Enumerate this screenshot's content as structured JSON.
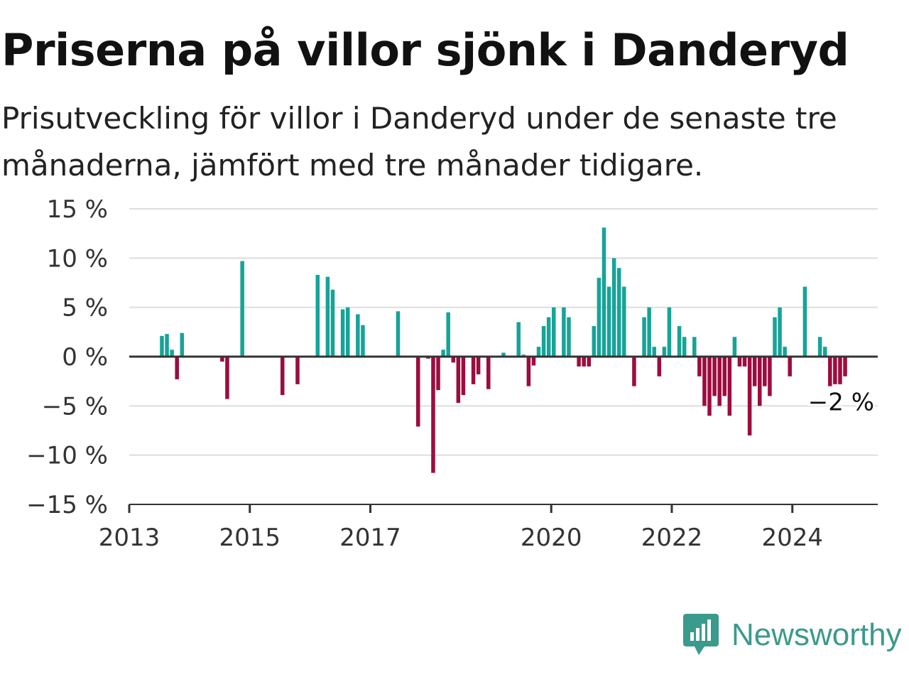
{
  "title": "Priserna på villor sjönk i Danderyd",
  "subtitle": "Prisutveckling för villor i Danderyd under de senaste tre månaderna, jämfört med tre månader tidigare.",
  "brand": {
    "name": "Newsworthy",
    "icon": "newsworthy-logo-icon",
    "color": "#3a9a8c"
  },
  "chart_data": {
    "type": "bar",
    "x_start": "2013-01",
    "x_end": "2025-06",
    "ylim": [
      -15,
      15
    ],
    "yticks": [
      15,
      10,
      5,
      0,
      -5,
      -10,
      -15
    ],
    "ytick_labels": [
      "15 %",
      "10 %",
      "5 %",
      "0 %",
      "−5 %",
      "−10 %",
      "−15 %"
    ],
    "xticks": [
      "2013",
      "2015",
      "2017",
      "2020",
      "2022",
      "2024"
    ],
    "colors": {
      "positive": "#17a398",
      "negative": "#9c0c3f",
      "grid": "#dddddd",
      "axis": "#333333"
    },
    "last_value_label": "−2 %",
    "values": [
      [
        "2013-07",
        2.1
      ],
      [
        "2013-08",
        2.3
      ],
      [
        "2013-09",
        0.7
      ],
      [
        "2013-10",
        -2.3
      ],
      [
        "2013-11",
        2.4
      ],
      [
        "2014-07",
        -0.5
      ],
      [
        "2014-08",
        -4.3
      ],
      [
        "2014-11",
        9.7
      ],
      [
        "2015-07",
        -3.9
      ],
      [
        "2015-10",
        -2.8
      ],
      [
        "2016-02",
        8.3
      ],
      [
        "2016-04",
        8.1
      ],
      [
        "2016-05",
        6.8
      ],
      [
        "2016-07",
        4.8
      ],
      [
        "2016-08",
        5.0
      ],
      [
        "2016-10",
        4.3
      ],
      [
        "2016-11",
        3.2
      ],
      [
        "2017-06",
        4.6
      ],
      [
        "2017-10",
        -7.1
      ],
      [
        "2017-12",
        -0.2
      ],
      [
        "2018-01",
        -11.8
      ],
      [
        "2018-02",
        -3.4
      ],
      [
        "2018-03",
        0.7
      ],
      [
        "2018-04",
        4.5
      ],
      [
        "2018-05",
        -0.6
      ],
      [
        "2018-06",
        -4.7
      ],
      [
        "2018-07",
        -3.9
      ],
      [
        "2018-09",
        -2.8
      ],
      [
        "2018-10",
        -1.8
      ],
      [
        "2018-12",
        -3.3
      ],
      [
        "2019-03",
        0.4
      ],
      [
        "2019-06",
        3.5
      ],
      [
        "2019-07",
        0.2
      ],
      [
        "2019-08",
        -3.0
      ],
      [
        "2019-09",
        -0.9
      ],
      [
        "2019-10",
        1.0
      ],
      [
        "2019-11",
        3.1
      ],
      [
        "2019-12",
        4.0
      ],
      [
        "2020-01",
        5.0
      ],
      [
        "2020-03",
        5.0
      ],
      [
        "2020-04",
        4.0
      ],
      [
        "2020-06",
        -1.0
      ],
      [
        "2020-07",
        -1.0
      ],
      [
        "2020-08",
        -1.0
      ],
      [
        "2020-09",
        3.1
      ],
      [
        "2020-10",
        8.0
      ],
      [
        "2020-11",
        13.1
      ],
      [
        "2020-12",
        7.1
      ],
      [
        "2021-01",
        10.0
      ],
      [
        "2021-02",
        9.0
      ],
      [
        "2021-03",
        7.1
      ],
      [
        "2021-05",
        -3.0
      ],
      [
        "2021-07",
        4.0
      ],
      [
        "2021-08",
        5.0
      ],
      [
        "2021-09",
        1.0
      ],
      [
        "2021-10",
        -2.0
      ],
      [
        "2021-11",
        1.0
      ],
      [
        "2021-12",
        5.0
      ],
      [
        "2022-02",
        3.1
      ],
      [
        "2022-03",
        2.0
      ],
      [
        "2022-05",
        2.0
      ],
      [
        "2022-06",
        -2.0
      ],
      [
        "2022-07",
        -5.0
      ],
      [
        "2022-08",
        -6.0
      ],
      [
        "2022-09",
        -4.0
      ],
      [
        "2022-10",
        -5.0
      ],
      [
        "2022-11",
        -4.0
      ],
      [
        "2022-12",
        -6.0
      ],
      [
        "2023-01",
        2.0
      ],
      [
        "2023-02",
        -1.0
      ],
      [
        "2023-03",
        -1.0
      ],
      [
        "2023-04",
        -8.0
      ],
      [
        "2023-05",
        -3.0
      ],
      [
        "2023-06",
        -5.0
      ],
      [
        "2023-07",
        -3.0
      ],
      [
        "2023-08",
        -4.0
      ],
      [
        "2023-09",
        4.0
      ],
      [
        "2023-10",
        5.0
      ],
      [
        "2023-11",
        1.0
      ],
      [
        "2023-12",
        -2.0
      ],
      [
        "2024-03",
        7.1
      ],
      [
        "2024-06",
        2.0
      ],
      [
        "2024-07",
        1.0
      ],
      [
        "2024-08",
        -3.0
      ],
      [
        "2024-09",
        -2.8
      ],
      [
        "2024-10",
        -2.8
      ],
      [
        "2024-11",
        -2.0
      ]
    ]
  }
}
